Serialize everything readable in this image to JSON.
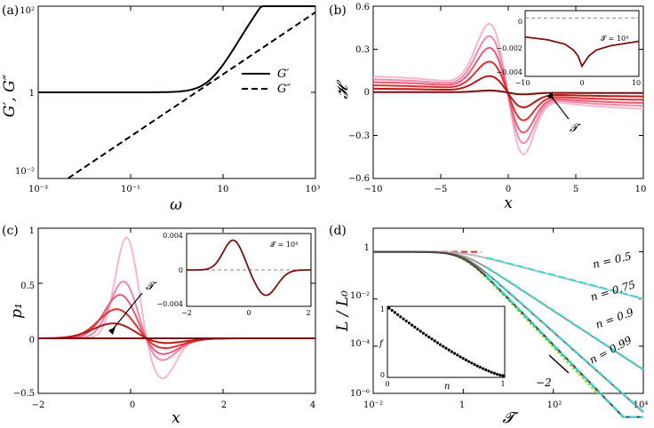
{
  "chart_data": [
    {
      "panel": "(a)",
      "type": "line",
      "xlabel": "ω",
      "ylabel": "G′, G″",
      "xscale": "log",
      "yscale": "log",
      "xlim": [
        0.001,
        1000
      ],
      "ylim": [
        0.01,
        100
      ],
      "xticks": [
        "10⁻³",
        "10⁻¹",
        "10",
        "10³"
      ],
      "yticks": [
        "10⁻²",
        "1",
        "10²"
      ],
      "legend_position": "right-center",
      "series": [
        {
          "name": "G′",
          "style": "solid",
          "x": [
            0.001,
            0.01,
            0.1,
            1,
            3,
            10,
            100,
            1000
          ],
          "y": [
            1,
            1.0001,
            1.01,
            1.18,
            1.6,
            3.2,
            20,
            75
          ]
        },
        {
          "name": "G″",
          "style": "dashed",
          "x": [
            0.001,
            0.01,
            0.1,
            1,
            10,
            100,
            1000
          ],
          "y": [
            0.006,
            0.03,
            0.15,
            0.6,
            3.5,
            20,
            110
          ]
        }
      ]
    },
    {
      "panel": "(b)",
      "type": "line",
      "xlabel": "x",
      "ylabel": "𝓗",
      "xlim": [
        -10,
        10
      ],
      "ylim": [
        -0.6,
        0.6
      ],
      "xticks": [
        "−10",
        "−5",
        "0",
        "5",
        "10"
      ],
      "yticks": [
        "−0.6",
        "−0.3",
        "0",
        "0.3",
        "0.6"
      ],
      "annotation": "𝓣",
      "series": [
        {
          "name": "t1",
          "amp": 1.0,
          "color": "#f7b6cf"
        },
        {
          "name": "t2",
          "amp": 0.82,
          "color": "#f08aaa"
        },
        {
          "name": "t3",
          "amp": 0.65,
          "color": "#ea5a7a"
        },
        {
          "name": "t4",
          "amp": 0.45,
          "color": "#e23030"
        },
        {
          "name": "t5",
          "amp": 0.24,
          "color": "#b81818"
        },
        {
          "name": "t6",
          "amp": 0.03,
          "color": "#7a1010"
        }
      ],
      "inset": {
        "label": "𝓣 = 10⁴",
        "xlim": [
          -10,
          10
        ],
        "ylim": [
          -0.004,
          0.0005
        ],
        "xticks": [
          "−10",
          "0",
          "10"
        ],
        "yticks": [
          "0",
          "−0.002",
          "−0.004"
        ],
        "x": [
          -10,
          -6,
          -3,
          -1.5,
          -0.7,
          0,
          0.5,
          1.2,
          2.5,
          5,
          10
        ],
        "y": [
          -0.0013,
          -0.0015,
          -0.0018,
          -0.0022,
          -0.0026,
          -0.0033,
          -0.003,
          -0.0026,
          -0.0022,
          -0.0019,
          -0.0016
        ]
      }
    },
    {
      "panel": "(c)",
      "type": "line",
      "xlabel": "x",
      "ylabel": "p₁",
      "xlim": [
        -2,
        4
      ],
      "ylim": [
        -0.5,
        1
      ],
      "xticks": [
        "−2",
        "0",
        "2",
        "4"
      ],
      "yticks": [
        "−0.5",
        "0",
        "0.5",
        "1"
      ],
      "annotation": "𝓣",
      "series": [
        {
          "name": "t1",
          "peak": 0.93,
          "color": "#f7b6cf"
        },
        {
          "name": "t2",
          "peak": 0.54,
          "color": "#f08aaa"
        },
        {
          "name": "t3",
          "peak": 0.43,
          "color": "#ea5a7a"
        },
        {
          "name": "t4",
          "peak": 0.3,
          "color": "#e23030"
        },
        {
          "name": "t5",
          "peak": 0.16,
          "color": "#b81818"
        },
        {
          "name": "t6",
          "peak": 0.0,
          "color": "#7a1010"
        }
      ],
      "inset": {
        "label": "𝓣 = 10⁴",
        "xlim": [
          -2,
          2
        ],
        "ylim": [
          -0.004,
          0.004
        ],
        "xticks": [
          "−2",
          "0",
          "2"
        ],
        "yticks": [
          "0.004",
          "0",
          "−0.004"
        ]
      }
    },
    {
      "panel": "(d)",
      "type": "line",
      "xlabel": "𝓣",
      "ylabel": "L / L₀",
      "xscale": "log",
      "yscale": "log",
      "xlim": [
        0.01,
        10000
      ],
      "ylim": [
        1e-06,
        10
      ],
      "xticks": [
        "10⁻²",
        "1",
        "10²",
        "10⁴"
      ],
      "yticks": [
        "1",
        "10⁻²",
        "10⁻⁴",
        "10⁻⁶"
      ],
      "series": [
        {
          "name": "n = 0.5",
          "n": 0.5
        },
        {
          "name": "n = 0.75",
          "n": 0.75
        },
        {
          "name": "n = 0.9",
          "n": 0.9
        },
        {
          "name": "n = 0.99",
          "n": 0.99
        }
      ],
      "slope_label": "−2",
      "inset": {
        "xlabel": "n",
        "ylabel": "f",
        "xlim": [
          0,
          1
        ],
        "ylim": [
          0,
          1
        ],
        "xticks": [
          "0",
          "1"
        ],
        "yticks": [
          "1",
          "0"
        ]
      }
    }
  ]
}
